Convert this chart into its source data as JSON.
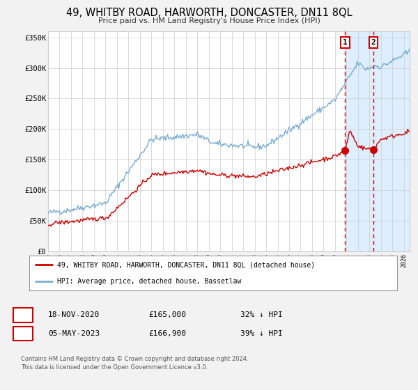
{
  "title": "49, WHITBY ROAD, HARWORTH, DONCASTER, DN11 8QL",
  "subtitle": "Price paid vs. HM Land Registry's House Price Index (HPI)",
  "legend_red": "49, WHITBY ROAD, HARWORTH, DONCASTER, DN11 8QL (detached house)",
  "legend_blue": "HPI: Average price, detached house, Bassetlaw",
  "sale1_date": "18-NOV-2020",
  "sale1_price": "£165,000",
  "sale1_hpi": "32% ↓ HPI",
  "sale2_date": "05-MAY-2023",
  "sale2_price": "£166,900",
  "sale2_hpi": "39% ↓ HPI",
  "footnote1": "Contains HM Land Registry data © Crown copyright and database right 2024.",
  "footnote2": "This data is licensed under the Open Government Licence v3.0.",
  "xmin": 1995.0,
  "xmax": 2026.5,
  "ymin": 0,
  "ymax": 360000,
  "yticks": [
    0,
    50000,
    100000,
    150000,
    200000,
    250000,
    300000,
    350000
  ],
  "ytick_labels": [
    "£0",
    "£50K",
    "£100K",
    "£150K",
    "£200K",
    "£250K",
    "£300K",
    "£350K"
  ],
  "xticks": [
    1995,
    1996,
    1997,
    1998,
    1999,
    2000,
    2001,
    2002,
    2003,
    2004,
    2005,
    2006,
    2007,
    2008,
    2009,
    2010,
    2011,
    2012,
    2013,
    2014,
    2015,
    2016,
    2017,
    2018,
    2019,
    2020,
    2021,
    2022,
    2023,
    2024,
    2025,
    2026
  ],
  "sale1_x": 2020.88,
  "sale1_y": 165000,
  "sale2_x": 2023.34,
  "sale2_y": 166900,
  "vline1_x": 2020.88,
  "vline2_x": 2023.34,
  "shade_x1": 2020.88,
  "shade_x2": 2026.5,
  "bg_color": "#f2f2f2",
  "plot_bg_color": "#ffffff",
  "grid_color": "#cccccc",
  "red_line_color": "#cc0000",
  "blue_line_color": "#7aadd4",
  "shade_color": "#ddeeff",
  "vline_color": "#cc0000",
  "hatch_color": "#bbccdd"
}
